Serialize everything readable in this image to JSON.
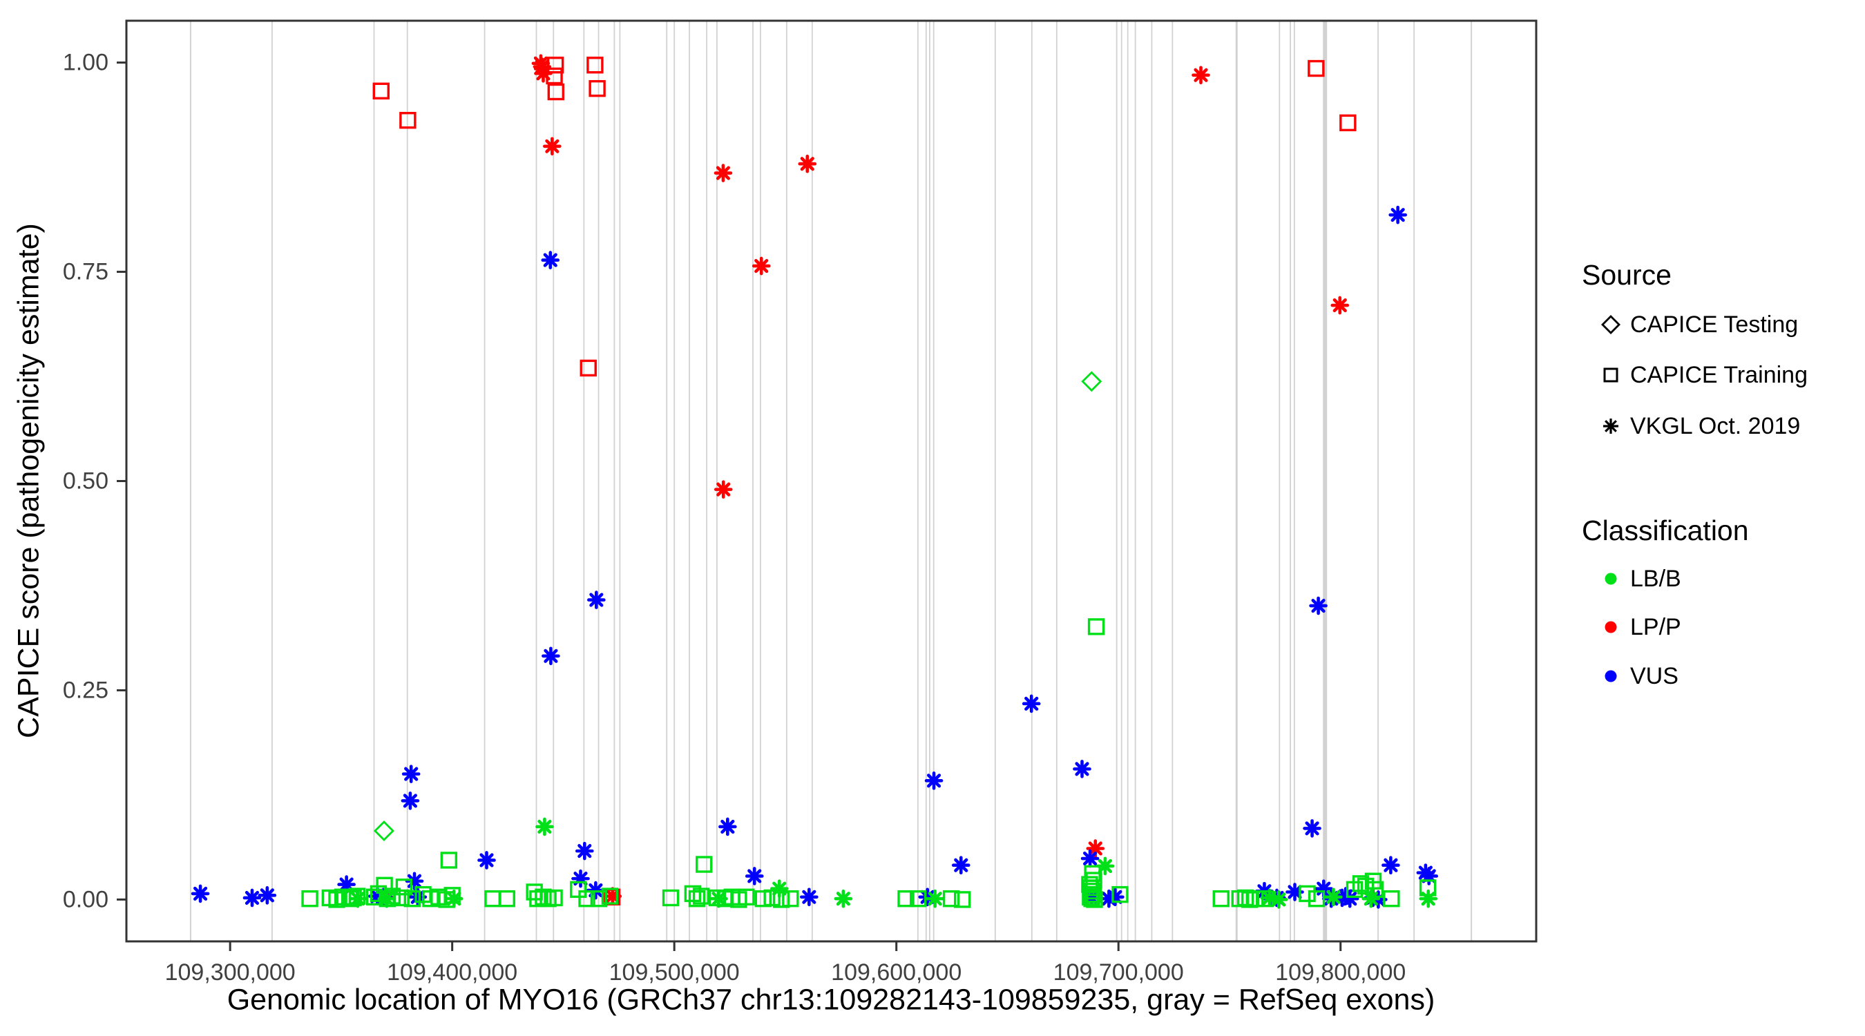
{
  "chart_data": {
    "type": "scatter",
    "title": "",
    "xlabel": "Genomic location of MYO16 (GRCh37 chr13:109282143-109859235, gray = RefSeq exons)",
    "ylabel": "CAPICE score (pathogenicity estimate)",
    "xlim": [
      109253300,
      109888100
    ],
    "ylim": [
      -0.05,
      1.05
    ],
    "grid": "off",
    "panel": {
      "l": 183,
      "t": 30,
      "r": 2224,
      "b": 1363
    },
    "panel_border_color": "#333333",
    "tick_color": "#333333",
    "tick_label_color": "#404040",
    "exon_color": "#d2d2d2",
    "x_ticks": [
      {
        "v": 109300000,
        "label": "109,300,000"
      },
      {
        "v": 109400000,
        "label": "109,400,000"
      },
      {
        "v": 109500000,
        "label": "109,500,000"
      },
      {
        "v": 109600000,
        "label": "109,600,000"
      },
      {
        "v": 109700000,
        "label": "109,700,000"
      },
      {
        "v": 109800000,
        "label": "109,800,000"
      }
    ],
    "y_ticks": [
      {
        "v": 0.0,
        "label": "0.00"
      },
      {
        "v": 0.25,
        "label": "0.25"
      },
      {
        "v": 0.5,
        "label": "0.50"
      },
      {
        "v": 0.75,
        "label": "0.75"
      },
      {
        "v": 1.0,
        "label": "1.00"
      }
    ],
    "source_legend": {
      "title": "Source",
      "items": [
        {
          "key": "testing",
          "label": "CAPICE Testing",
          "marker": "diamond"
        },
        {
          "key": "training",
          "label": "CAPICE Training",
          "marker": "square"
        },
        {
          "key": "vkgl",
          "label": "VKGL Oct. 2019",
          "marker": "asterisk"
        }
      ]
    },
    "class_legend": {
      "title": "Classification",
      "items": [
        {
          "label": "LB/B",
          "color": "#00e019"
        },
        {
          "label": "LP/P",
          "color": "#ff0000"
        },
        {
          "label": "VUS",
          "color": "#0000ff"
        }
      ]
    },
    "exons": [
      {
        "x": 109282200,
        "w": 2
      },
      {
        "x": 109318900,
        "w": 1.8
      },
      {
        "x": 109364800,
        "w": 1.8
      },
      {
        "x": 109379800,
        "w": 1.8
      },
      {
        "x": 109414600,
        "w": 1.8
      },
      {
        "x": 109437900,
        "w": 1.8
      },
      {
        "x": 109445600,
        "w": 1.8
      },
      {
        "x": 109459300,
        "w": 1.8
      },
      {
        "x": 109465900,
        "w": 1.8
      },
      {
        "x": 109473000,
        "w": 1.8
      },
      {
        "x": 109475500,
        "w": 1.8
      },
      {
        "x": 109496600,
        "w": 1.8
      },
      {
        "x": 109500000,
        "w": 1.8
      },
      {
        "x": 109506800,
        "w": 1.8
      },
      {
        "x": 109514600,
        "w": 1.8
      },
      {
        "x": 109519200,
        "w": 1.8
      },
      {
        "x": 109535400,
        "w": 1.8
      },
      {
        "x": 109538800,
        "w": 1.8
      },
      {
        "x": 109550600,
        "w": 1.8
      },
      {
        "x": 109562100,
        "w": 1.8
      },
      {
        "x": 109609700,
        "w": 1.8
      },
      {
        "x": 109613400,
        "w": 1.8
      },
      {
        "x": 109615000,
        "w": 1.8
      },
      {
        "x": 109616800,
        "w": 1.8
      },
      {
        "x": 109644500,
        "w": 1.8
      },
      {
        "x": 109661000,
        "w": 1.8
      },
      {
        "x": 109672200,
        "w": 1.8
      },
      {
        "x": 109699200,
        "w": 1.8
      },
      {
        "x": 109701400,
        "w": 1.8
      },
      {
        "x": 109704200,
        "w": 1.8
      },
      {
        "x": 109707600,
        "w": 1.8
      },
      {
        "x": 109715000,
        "w": 1.8
      },
      {
        "x": 109724300,
        "w": 1.8
      },
      {
        "x": 109753200,
        "w": 3
      },
      {
        "x": 109772500,
        "w": 1.8
      },
      {
        "x": 109777400,
        "w": 1.8
      },
      {
        "x": 109779200,
        "w": 1.8
      },
      {
        "x": 109793000,
        "w": 6
      },
      {
        "x": 109816900,
        "w": 1.8
      },
      {
        "x": 109833100,
        "w": 1.8
      },
      {
        "x": 109858900,
        "w": 2
      }
    ],
    "points": [
      [
        109368000,
        0.966,
        "LP/P",
        "training"
      ],
      [
        109380000,
        0.931,
        "LP/P",
        "training"
      ],
      [
        109446500,
        0.997,
        "LP/P",
        "training"
      ],
      [
        109446000,
        0.984,
        "LP/P",
        "training"
      ],
      [
        109446700,
        0.965,
        "LP/P",
        "training"
      ],
      [
        109464300,
        0.997,
        "LP/P",
        "training"
      ],
      [
        109465300,
        0.969,
        "LP/P",
        "training"
      ],
      [
        109461300,
        0.635,
        "LP/P",
        "training"
      ],
      [
        109472000,
        0.003,
        "LP/P",
        "training"
      ],
      [
        109789000,
        0.993,
        "LP/P",
        "training"
      ],
      [
        109803300,
        0.928,
        "LP/P",
        "training"
      ],
      [
        109439900,
        0.999,
        "LP/P",
        "vkgl"
      ],
      [
        109440500,
        0.995,
        "LP/P",
        "vkgl"
      ],
      [
        109441000,
        0.987,
        "LP/P",
        "vkgl"
      ],
      [
        109445000,
        0.9,
        "LP/P",
        "vkgl"
      ],
      [
        109522000,
        0.868,
        "LP/P",
        "vkgl"
      ],
      [
        109559900,
        0.879,
        "LP/P",
        "vkgl"
      ],
      [
        109539200,
        0.757,
        "LP/P",
        "vkgl"
      ],
      [
        109522100,
        0.49,
        "LP/P",
        "vkgl"
      ],
      [
        109737100,
        0.985,
        "LP/P",
        "vkgl"
      ],
      [
        109799700,
        0.71,
        "LP/P",
        "vkgl"
      ],
      [
        109689600,
        0.061,
        "LP/P",
        "vkgl"
      ],
      [
        109472200,
        0.004,
        "LP/P",
        "vkgl"
      ],
      [
        109369200,
        0.003,
        "LP/P",
        "vkgl"
      ],
      [
        109286600,
        0.007,
        "VUS",
        "vkgl"
      ],
      [
        109309900,
        0.002,
        "VUS",
        "vkgl"
      ],
      [
        109316700,
        0.005,
        "VUS",
        "vkgl"
      ],
      [
        109352400,
        0.018,
        "VUS",
        "vkgl"
      ],
      [
        109366300,
        0.004,
        "VUS",
        "vkgl"
      ],
      [
        109369000,
        0.003,
        "VUS",
        "vkgl"
      ],
      [
        109383000,
        0.022,
        "VUS",
        "vkgl"
      ],
      [
        109384500,
        0.003,
        "VUS",
        "vkgl"
      ],
      [
        109381500,
        0.15,
        "VUS",
        "vkgl"
      ],
      [
        109381100,
        0.118,
        "VUS",
        "vkgl"
      ],
      [
        109415500,
        0.047,
        "VUS",
        "vkgl"
      ],
      [
        109444200,
        0.764,
        "VUS",
        "vkgl"
      ],
      [
        109444400,
        0.291,
        "VUS",
        "vkgl"
      ],
      [
        109464900,
        0.358,
        "VUS",
        "vkgl"
      ],
      [
        109459600,
        0.058,
        "VUS",
        "vkgl"
      ],
      [
        109457800,
        0.025,
        "VUS",
        "vkgl"
      ],
      [
        109464600,
        0.011,
        "VUS",
        "vkgl"
      ],
      [
        109524000,
        0.087,
        "VUS",
        "vkgl"
      ],
      [
        109536100,
        0.028,
        "VUS",
        "vkgl"
      ],
      [
        109560700,
        0.003,
        "VUS",
        "vkgl"
      ],
      [
        109629100,
        0.041,
        "VUS",
        "vkgl"
      ],
      [
        109614000,
        0.003,
        "VUS",
        "vkgl"
      ],
      [
        109616900,
        0.142,
        "VUS",
        "vkgl"
      ],
      [
        109660800,
        0.234,
        "VUS",
        "vkgl"
      ],
      [
        109683600,
        0.156,
        "VUS",
        "vkgl"
      ],
      [
        109687200,
        0.049,
        "VUS",
        "vkgl"
      ],
      [
        109687900,
        0.002,
        "VUS",
        "vkgl"
      ],
      [
        109695700,
        0.001,
        "VUS",
        "vkgl"
      ],
      [
        109698500,
        0.003,
        "VUS",
        "vkgl"
      ],
      [
        109771300,
        0.002,
        "VUS",
        "vkgl"
      ],
      [
        109765700,
        0.01,
        "VUS",
        "vkgl"
      ],
      [
        109779400,
        0.009,
        "VUS",
        "vkgl"
      ],
      [
        109787200,
        0.085,
        "VUS",
        "vkgl"
      ],
      [
        109790000,
        0.351,
        "VUS",
        "vkgl"
      ],
      [
        109792400,
        0.013,
        "VUS",
        "vkgl"
      ],
      [
        109795800,
        0.001,
        "VUS",
        "vkgl"
      ],
      [
        109800700,
        0.002,
        "VUS",
        "vkgl"
      ],
      [
        109804200,
        0.001,
        "VUS",
        "vkgl"
      ],
      [
        109802300,
        0.004,
        "VUS",
        "vkgl"
      ],
      [
        109822600,
        0.041,
        "VUS",
        "vkgl"
      ],
      [
        109814600,
        0.002,
        "VUS",
        "vkgl"
      ],
      [
        109817000,
        0.0,
        "VUS",
        "vkgl"
      ],
      [
        109838300,
        0.032,
        "VUS",
        "vkgl"
      ],
      [
        109839800,
        0.028,
        "VUS",
        "vkgl"
      ],
      [
        109825800,
        0.818,
        "VUS",
        "vkgl"
      ],
      [
        109369300,
        0.082,
        "LB/B",
        "testing"
      ],
      [
        109687900,
        0.619,
        "LB/B",
        "testing"
      ],
      [
        109335900,
        0.001,
        "LB/B",
        "training"
      ],
      [
        109345000,
        0.002,
        "LB/B",
        "training"
      ],
      [
        109348000,
        0.0,
        "LB/B",
        "training"
      ],
      [
        109350700,
        0.003,
        "LB/B",
        "training"
      ],
      [
        109353800,
        0.001,
        "LB/B",
        "training"
      ],
      [
        109355500,
        0.002,
        "LB/B",
        "training"
      ],
      [
        109357200,
        0.004,
        "LB/B",
        "training"
      ],
      [
        109369500,
        0.017,
        "LB/B",
        "training"
      ],
      [
        109366800,
        0.007,
        "LB/B",
        "training"
      ],
      [
        109365000,
        0.003,
        "LB/B",
        "training"
      ],
      [
        109370800,
        0.001,
        "LB/B",
        "training"
      ],
      [
        109373000,
        0.004,
        "LB/B",
        "training"
      ],
      [
        109378300,
        0.015,
        "LB/B",
        "training"
      ],
      [
        109377000,
        0.002,
        "LB/B",
        "training"
      ],
      [
        109382000,
        0.001,
        "LB/B",
        "training"
      ],
      [
        109386900,
        0.006,
        "LB/B",
        "training"
      ],
      [
        109390300,
        0.001,
        "LB/B",
        "training"
      ],
      [
        109394000,
        0.003,
        "LB/B",
        "training"
      ],
      [
        109397500,
        0.0,
        "LB/B",
        "training"
      ],
      [
        109400000,
        0.005,
        "LB/B",
        "training"
      ],
      [
        109398500,
        0.047,
        "LB/B",
        "training"
      ],
      [
        109418300,
        0.001,
        "LB/B",
        "training"
      ],
      [
        109424600,
        0.001,
        "LB/B",
        "training"
      ],
      [
        109437000,
        0.009,
        "LB/B",
        "training"
      ],
      [
        109438500,
        0.001,
        "LB/B",
        "training"
      ],
      [
        109441000,
        0.003,
        "LB/B",
        "training"
      ],
      [
        109443200,
        0.001,
        "LB/B",
        "training"
      ],
      [
        109446000,
        0.002,
        "LB/B",
        "training"
      ],
      [
        109456800,
        0.012,
        "LB/B",
        "training"
      ],
      [
        109460600,
        0.001,
        "LB/B",
        "training"
      ],
      [
        109466000,
        0.001,
        "LB/B",
        "training"
      ],
      [
        109471000,
        0.004,
        "LB/B",
        "training"
      ],
      [
        109498400,
        0.002,
        "LB/B",
        "training"
      ],
      [
        109508300,
        0.007,
        "LB/B",
        "training"
      ],
      [
        109510200,
        0.001,
        "LB/B",
        "training"
      ],
      [
        109512100,
        0.004,
        "LB/B",
        "training"
      ],
      [
        109513400,
        0.042,
        "LB/B",
        "training"
      ],
      [
        109519200,
        0.002,
        "LB/B",
        "training"
      ],
      [
        109523000,
        0.001,
        "LB/B",
        "training"
      ],
      [
        109526000,
        0.003,
        "LB/B",
        "training"
      ],
      [
        109529000,
        0.0,
        "LB/B",
        "training"
      ],
      [
        109532400,
        0.003,
        "LB/B",
        "training"
      ],
      [
        109540000,
        0.001,
        "LB/B",
        "training"
      ],
      [
        109544000,
        0.002,
        "LB/B",
        "training"
      ],
      [
        109548200,
        0.0,
        "LB/B",
        "training"
      ],
      [
        109552300,
        0.001,
        "LB/B",
        "training"
      ],
      [
        109604300,
        0.001,
        "LB/B",
        "training"
      ],
      [
        109609800,
        0.001,
        "LB/B",
        "training"
      ],
      [
        109624700,
        0.001,
        "LB/B",
        "training"
      ],
      [
        109629700,
        0.0,
        "LB/B",
        "training"
      ],
      [
        109690000,
        0.326,
        "LB/B",
        "training"
      ],
      [
        109688300,
        0.031,
        "LB/B",
        "training"
      ],
      [
        109688900,
        0.023,
        "LB/B",
        "training"
      ],
      [
        109687000,
        0.018,
        "LB/B",
        "training"
      ],
      [
        109687600,
        0.014,
        "LB/B",
        "training"
      ],
      [
        109688200,
        0.01,
        "LB/B",
        "training"
      ],
      [
        109688800,
        0.006,
        "LB/B",
        "training"
      ],
      [
        109687300,
        0.003,
        "LB/B",
        "training"
      ],
      [
        109688000,
        0.001,
        "LB/B",
        "training"
      ],
      [
        109689200,
        0.0,
        "LB/B",
        "training"
      ],
      [
        109700700,
        0.006,
        "LB/B",
        "training"
      ],
      [
        109746200,
        0.001,
        "LB/B",
        "training"
      ],
      [
        109754600,
        0.001,
        "LB/B",
        "training"
      ],
      [
        109757200,
        0.002,
        "LB/B",
        "training"
      ],
      [
        109759100,
        0.0,
        "LB/B",
        "training"
      ],
      [
        109761600,
        0.001,
        "LB/B",
        "training"
      ],
      [
        109766100,
        0.001,
        "LB/B",
        "training"
      ],
      [
        109785000,
        0.007,
        "LB/B",
        "training"
      ],
      [
        109789200,
        0.001,
        "LB/B",
        "training"
      ],
      [
        109806300,
        0.012,
        "LB/B",
        "training"
      ],
      [
        109809100,
        0.019,
        "LB/B",
        "training"
      ],
      [
        109811300,
        0.016,
        "LB/B",
        "training"
      ],
      [
        109814700,
        0.022,
        "LB/B",
        "training"
      ],
      [
        109815600,
        0.012,
        "LB/B",
        "training"
      ],
      [
        109822900,
        0.001,
        "LB/B",
        "training"
      ],
      [
        109839300,
        0.014,
        "LB/B",
        "training"
      ],
      [
        109441600,
        0.087,
        "LB/B",
        "vkgl"
      ],
      [
        109357500,
        0.001,
        "LB/B",
        "vkgl"
      ],
      [
        109370500,
        0.001,
        "LB/B",
        "vkgl"
      ],
      [
        109400800,
        0.001,
        "LB/B",
        "vkgl"
      ],
      [
        109520000,
        0.001,
        "LB/B",
        "vkgl"
      ],
      [
        109547300,
        0.013,
        "LB/B",
        "vkgl"
      ],
      [
        109576100,
        0.001,
        "LB/B",
        "vkgl"
      ],
      [
        109617400,
        0.001,
        "LB/B",
        "vkgl"
      ],
      [
        109694000,
        0.04,
        "LB/B",
        "vkgl"
      ],
      [
        109768000,
        0.002,
        "LB/B",
        "vkgl"
      ],
      [
        109772200,
        0.0,
        "LB/B",
        "vkgl"
      ],
      [
        109796800,
        0.003,
        "LB/B",
        "vkgl"
      ],
      [
        109813700,
        0.001,
        "LB/B",
        "vkgl"
      ],
      [
        109839500,
        0.001,
        "LB/B",
        "vkgl"
      ]
    ],
    "marker_sizes": {
      "asterisk_r": 11,
      "asterisk_stroke": 4.6,
      "square_half": 10.5,
      "square_stroke": 3.4,
      "diamond_r": 13,
      "diamond_stroke": 2.8
    }
  }
}
